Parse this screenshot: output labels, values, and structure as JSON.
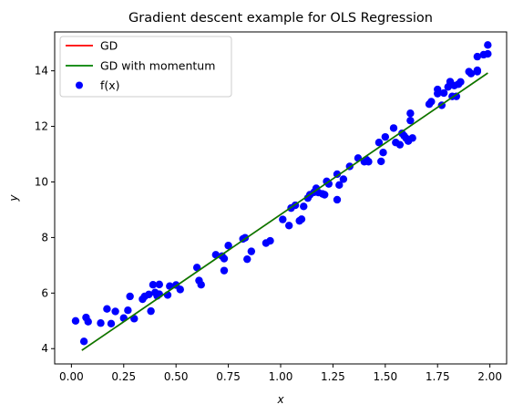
{
  "chart_data": {
    "type": "scatter",
    "title": "Gradient descent example for OLS Regression",
    "xlabel": "x",
    "ylabel": "y",
    "xlim": [
      -0.08,
      2.08
    ],
    "ylim": [
      3.45,
      15.4
    ],
    "xticks": [
      0.0,
      0.25,
      0.5,
      0.75,
      1.0,
      1.25,
      1.5,
      1.75,
      2.0
    ],
    "xtick_labels": [
      "0.00",
      "0.25",
      "0.50",
      "0.75",
      "1.00",
      "1.25",
      "1.50",
      "1.75",
      "2.00"
    ],
    "yticks": [
      4,
      6,
      8,
      10,
      12,
      14
    ],
    "ytick_labels": [
      "4",
      "6",
      "8",
      "10",
      "12",
      "14"
    ],
    "grid": false,
    "legend_position": "top-left",
    "series": [
      {
        "name": "GD",
        "kind": "line",
        "color": "#ff0000",
        "points": [
          [
            0.05,
            3.94
          ],
          [
            1.99,
            13.92
          ]
        ]
      },
      {
        "name": "GD with momentum",
        "kind": "line",
        "color": "#008000",
        "points": [
          [
            0.05,
            3.94
          ],
          [
            1.99,
            13.92
          ]
        ]
      },
      {
        "name": "f(x)",
        "kind": "scatter",
        "color": "#0000ff",
        "points": [
          [
            0.02,
            5.0
          ],
          [
            0.06,
            4.26
          ],
          [
            0.07,
            5.12
          ],
          [
            0.08,
            4.97
          ],
          [
            0.14,
            4.92
          ],
          [
            0.17,
            5.43
          ],
          [
            0.19,
            4.9
          ],
          [
            0.21,
            5.34
          ],
          [
            0.25,
            5.1
          ],
          [
            0.27,
            5.38
          ],
          [
            0.28,
            5.88
          ],
          [
            0.3,
            5.08
          ],
          [
            0.34,
            5.78
          ],
          [
            0.35,
            5.88
          ],
          [
            0.37,
            5.95
          ],
          [
            0.38,
            5.35
          ],
          [
            0.39,
            6.3
          ],
          [
            0.4,
            6.02
          ],
          [
            0.41,
            5.9
          ],
          [
            0.42,
            6.31
          ],
          [
            0.42,
            5.96
          ],
          [
            0.46,
            5.93
          ],
          [
            0.47,
            6.25
          ],
          [
            0.5,
            6.29
          ],
          [
            0.52,
            6.13
          ],
          [
            0.6,
            6.92
          ],
          [
            0.61,
            6.45
          ],
          [
            0.62,
            6.3
          ],
          [
            0.69,
            7.38
          ],
          [
            0.72,
            7.33
          ],
          [
            0.73,
            7.24
          ],
          [
            0.73,
            6.81
          ],
          [
            0.75,
            7.71
          ],
          [
            0.82,
            7.95
          ],
          [
            0.83,
            7.99
          ],
          [
            0.84,
            7.22
          ],
          [
            0.86,
            7.5
          ],
          [
            0.93,
            7.8
          ],
          [
            0.95,
            7.88
          ],
          [
            1.01,
            8.65
          ],
          [
            1.04,
            8.43
          ],
          [
            1.05,
            9.06
          ],
          [
            1.07,
            9.16
          ],
          [
            1.09,
            8.6
          ],
          [
            1.1,
            8.66
          ],
          [
            1.11,
            9.12
          ],
          [
            1.13,
            9.42
          ],
          [
            1.14,
            9.54
          ],
          [
            1.16,
            9.63
          ],
          [
            1.17,
            9.77
          ],
          [
            1.18,
            9.62
          ],
          [
            1.2,
            9.57
          ],
          [
            1.21,
            9.54
          ],
          [
            1.22,
            10.02
          ],
          [
            1.23,
            9.93
          ],
          [
            1.27,
            9.36
          ],
          [
            1.27,
            10.28
          ],
          [
            1.28,
            9.89
          ],
          [
            1.3,
            10.1
          ],
          [
            1.33,
            10.56
          ],
          [
            1.37,
            10.86
          ],
          [
            1.4,
            10.73
          ],
          [
            1.41,
            10.8
          ],
          [
            1.42,
            10.73
          ],
          [
            1.47,
            11.42
          ],
          [
            1.48,
            10.74
          ],
          [
            1.49,
            11.06
          ],
          [
            1.5,
            11.62
          ],
          [
            1.54,
            11.94
          ],
          [
            1.55,
            11.42
          ],
          [
            1.57,
            11.34
          ],
          [
            1.58,
            11.75
          ],
          [
            1.59,
            11.66
          ],
          [
            1.6,
            11.57
          ],
          [
            1.61,
            11.47
          ],
          [
            1.62,
            12.21
          ],
          [
            1.62,
            12.47
          ],
          [
            1.63,
            11.58
          ],
          [
            1.71,
            12.8
          ],
          [
            1.72,
            12.89
          ],
          [
            1.75,
            13.18
          ],
          [
            1.75,
            13.33
          ],
          [
            1.77,
            12.76
          ],
          [
            1.78,
            13.2
          ],
          [
            1.8,
            13.42
          ],
          [
            1.81,
            13.61
          ],
          [
            1.82,
            13.08
          ],
          [
            1.83,
            13.47
          ],
          [
            1.84,
            13.08
          ],
          [
            1.85,
            13.52
          ],
          [
            1.86,
            13.6
          ],
          [
            1.9,
            13.97
          ],
          [
            1.91,
            13.9
          ],
          [
            1.94,
            13.97
          ],
          [
            1.94,
            14.02
          ],
          [
            1.94,
            14.51
          ],
          [
            1.97,
            14.58
          ],
          [
            1.99,
            14.61
          ],
          [
            1.99,
            14.93
          ]
        ]
      }
    ]
  }
}
